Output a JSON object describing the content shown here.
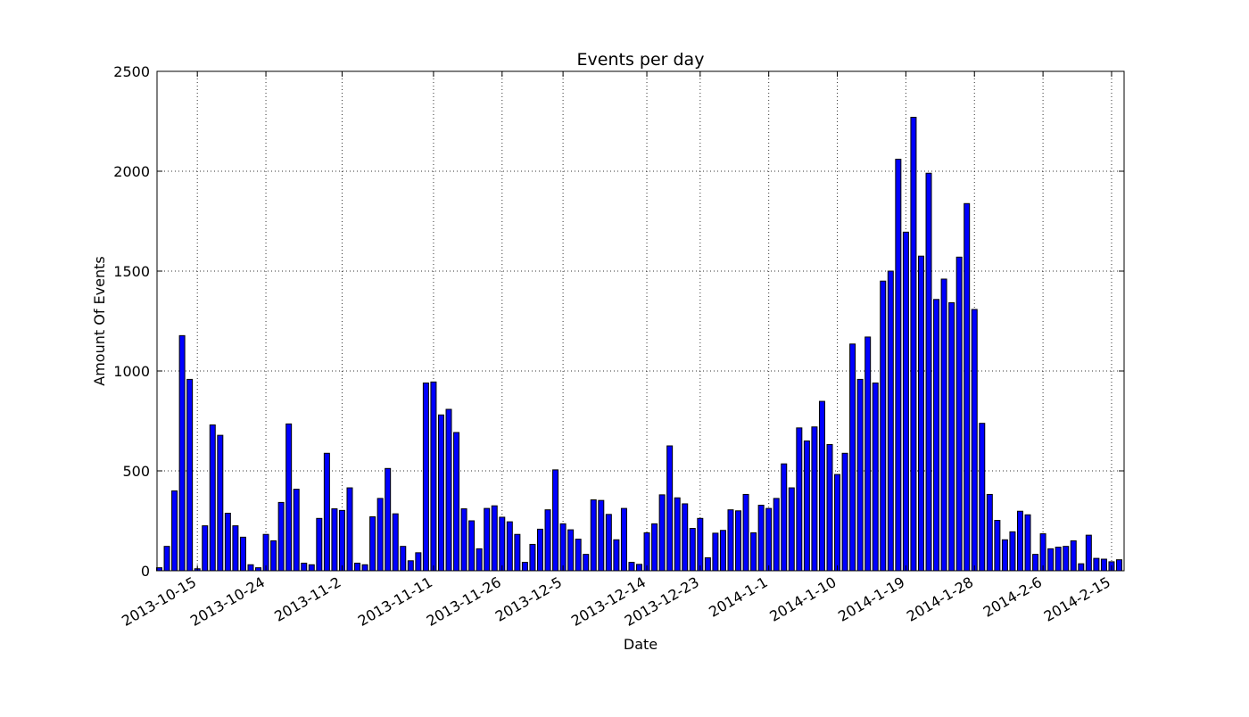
{
  "chart_data": {
    "type": "bar",
    "title": "Events per day",
    "xlabel": "Date",
    "ylabel": "Amount Of Events",
    "ylim": [
      0,
      2500
    ],
    "yticks": [
      "0",
      "500",
      "1000",
      "1500",
      "2000",
      "2500"
    ],
    "grid": true,
    "xtick_labels": [
      {
        "label": "2013-10-15",
        "at_index": 5
      },
      {
        "label": "2013-10-24",
        "at_index": 14
      },
      {
        "label": "2013-11-2",
        "at_index": 24
      },
      {
        "label": "2013-11-11",
        "at_index": 36
      },
      {
        "label": "2013-11-26",
        "at_index": 45
      },
      {
        "label": "2013-12-5",
        "at_index": 53
      },
      {
        "label": "2013-12-14",
        "at_index": 64
      },
      {
        "label": "2013-12-23",
        "at_index": 71
      },
      {
        "label": "2014-1-1",
        "at_index": 80
      },
      {
        "label": "2014-1-10",
        "at_index": 89
      },
      {
        "label": "2014-1-19",
        "at_index": 98
      },
      {
        "label": "2014-1-28",
        "at_index": 107
      },
      {
        "label": "2014-2-6",
        "at_index": 116
      },
      {
        "label": "2014-2-15",
        "at_index": 125
      }
    ],
    "values": [
      15,
      122,
      400,
      1177,
      958,
      10,
      225,
      730,
      678,
      288,
      225,
      168,
      30,
      15,
      182,
      150,
      342,
      735,
      408,
      38,
      30,
      262,
      588,
      310,
      302,
      415,
      38,
      30,
      270,
      362,
      512,
      285,
      122,
      50,
      90,
      940,
      945,
      780,
      808,
      692,
      310,
      250,
      110,
      312,
      325,
      268,
      245,
      182,
      42,
      132,
      208,
      305,
      505,
      235,
      205,
      158,
      82,
      355,
      352,
      282,
      155,
      312,
      42,
      32,
      190,
      235,
      380,
      625,
      365,
      335,
      212,
      262,
      65,
      188,
      202,
      305,
      300,
      382,
      190,
      328,
      312,
      362,
      535,
      415,
      715,
      650,
      720,
      848,
      632,
      482,
      588,
      1135,
      958,
      1170,
      940,
      1450,
      1500,
      2060,
      1695,
      2270,
      1575,
      1990,
      1358,
      1460,
      1342,
      1570,
      1838,
      1308,
      738,
      382,
      252,
      155,
      195,
      298,
      280,
      82,
      185,
      110,
      118,
      122,
      150,
      35,
      178,
      62,
      58,
      45,
      55
    ]
  }
}
